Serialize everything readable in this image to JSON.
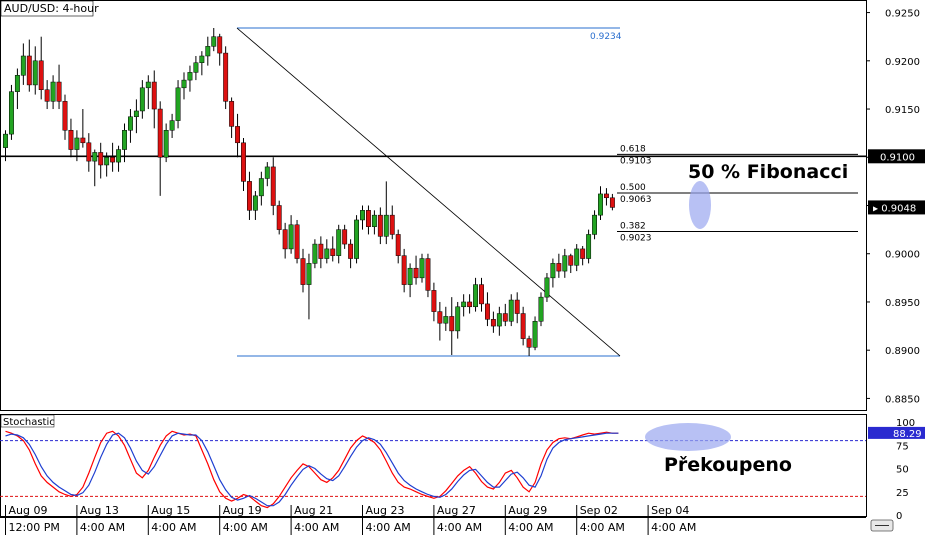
{
  "chart_data": {
    "type": "candlestick",
    "title": "AUD/USD: 4-hour",
    "current_price": "0.9048",
    "price_axis": {
      "ticks": [
        "0.9250",
        "0.9200",
        "0.9150",
        "0.9100",
        "0.9050",
        "0.9000",
        "0.8950",
        "0.8900",
        "0.8850"
      ],
      "range": [
        0.8838,
        0.9262
      ],
      "grid": false
    },
    "horizontal_line": {
      "value": 0.9101,
      "label": "0.9100"
    },
    "swing": {
      "high": {
        "value": 0.9234,
        "label": "0.9234"
      },
      "low": {
        "value": 0.8894
      }
    },
    "fibonacci": [
      {
        "ratio": "0.618",
        "price": "0.9103",
        "value": 0.9103
      },
      {
        "ratio": "0.500",
        "price": "0.9063",
        "value": 0.9063
      },
      {
        "ratio": "0.382",
        "price": "0.9023",
        "value": 0.9023
      }
    ],
    "annotations": {
      "fib_note": "50 % Fibonacci",
      "stoch_note": "Překoupeno"
    },
    "candles": [
      {
        "o": 0.911,
        "h": 0.9128,
        "l": 0.9096,
        "c": 0.9124
      },
      {
        "o": 0.9124,
        "h": 0.9175,
        "l": 0.9118,
        "c": 0.9168
      },
      {
        "o": 0.9168,
        "h": 0.9192,
        "l": 0.915,
        "c": 0.9185
      },
      {
        "o": 0.9185,
        "h": 0.9218,
        "l": 0.9175,
        "c": 0.9205
      },
      {
        "o": 0.9205,
        "h": 0.9222,
        "l": 0.9168,
        "c": 0.9175
      },
      {
        "o": 0.9175,
        "h": 0.9215,
        "l": 0.9165,
        "c": 0.92
      },
      {
        "o": 0.92,
        "h": 0.9225,
        "l": 0.916,
        "c": 0.917
      },
      {
        "o": 0.917,
        "h": 0.918,
        "l": 0.915,
        "c": 0.9158
      },
      {
        "o": 0.9158,
        "h": 0.9185,
        "l": 0.915,
        "c": 0.9178
      },
      {
        "o": 0.9178,
        "h": 0.9196,
        "l": 0.915,
        "c": 0.9158
      },
      {
        "o": 0.9158,
        "h": 0.9165,
        "l": 0.9118,
        "c": 0.9128
      },
      {
        "o": 0.9128,
        "h": 0.914,
        "l": 0.91,
        "c": 0.9108
      },
      {
        "o": 0.9108,
        "h": 0.9128,
        "l": 0.9096,
        "c": 0.912
      },
      {
        "o": 0.912,
        "h": 0.915,
        "l": 0.911,
        "c": 0.9115
      },
      {
        "o": 0.9115,
        "h": 0.9125,
        "l": 0.9085,
        "c": 0.9096
      },
      {
        "o": 0.9096,
        "h": 0.9108,
        "l": 0.907,
        "c": 0.9105
      },
      {
        "o": 0.9105,
        "h": 0.9115,
        "l": 0.9078,
        "c": 0.9092
      },
      {
        "o": 0.9092,
        "h": 0.9105,
        "l": 0.908,
        "c": 0.91
      },
      {
        "o": 0.91,
        "h": 0.9115,
        "l": 0.9085,
        "c": 0.9095
      },
      {
        "o": 0.9095,
        "h": 0.9112,
        "l": 0.9085,
        "c": 0.9108
      },
      {
        "o": 0.9108,
        "h": 0.9135,
        "l": 0.9095,
        "c": 0.9128
      },
      {
        "o": 0.9128,
        "h": 0.915,
        "l": 0.9115,
        "c": 0.9142
      },
      {
        "o": 0.9142,
        "h": 0.916,
        "l": 0.9125,
        "c": 0.9148
      },
      {
        "o": 0.9148,
        "h": 0.918,
        "l": 0.914,
        "c": 0.9172
      },
      {
        "o": 0.9172,
        "h": 0.9185,
        "l": 0.915,
        "c": 0.9178
      },
      {
        "o": 0.9178,
        "h": 0.919,
        "l": 0.913,
        "c": 0.915
      },
      {
        "o": 0.915,
        "h": 0.9158,
        "l": 0.906,
        "c": 0.91
      },
      {
        "o": 0.91,
        "h": 0.9135,
        "l": 0.9095,
        "c": 0.9128
      },
      {
        "o": 0.9128,
        "h": 0.9145,
        "l": 0.912,
        "c": 0.9138
      },
      {
        "o": 0.9138,
        "h": 0.918,
        "l": 0.913,
        "c": 0.9172
      },
      {
        "o": 0.9172,
        "h": 0.9188,
        "l": 0.916,
        "c": 0.918
      },
      {
        "o": 0.918,
        "h": 0.9195,
        "l": 0.9168,
        "c": 0.9188
      },
      {
        "o": 0.9188,
        "h": 0.9205,
        "l": 0.918,
        "c": 0.9198
      },
      {
        "o": 0.9198,
        "h": 0.921,
        "l": 0.9185,
        "c": 0.9205
      },
      {
        "o": 0.9205,
        "h": 0.9225,
        "l": 0.9195,
        "c": 0.9215
      },
      {
        "o": 0.9215,
        "h": 0.9234,
        "l": 0.921,
        "c": 0.9225
      },
      {
        "o": 0.9225,
        "h": 0.9228,
        "l": 0.9195,
        "c": 0.9208
      },
      {
        "o": 0.9208,
        "h": 0.9215,
        "l": 0.915,
        "c": 0.9158
      },
      {
        "o": 0.9158,
        "h": 0.9162,
        "l": 0.912,
        "c": 0.9132
      },
      {
        "o": 0.9132,
        "h": 0.9145,
        "l": 0.91,
        "c": 0.9115
      },
      {
        "o": 0.9115,
        "h": 0.912,
        "l": 0.9065,
        "c": 0.9075
      },
      {
        "o": 0.9075,
        "h": 0.9085,
        "l": 0.9035,
        "c": 0.9045
      },
      {
        "o": 0.9045,
        "h": 0.9065,
        "l": 0.9035,
        "c": 0.906
      },
      {
        "o": 0.906,
        "h": 0.9085,
        "l": 0.905,
        "c": 0.9078
      },
      {
        "o": 0.9078,
        "h": 0.9095,
        "l": 0.907,
        "c": 0.909
      },
      {
        "o": 0.909,
        "h": 0.91,
        "l": 0.904,
        "c": 0.905
      },
      {
        "o": 0.905,
        "h": 0.9055,
        "l": 0.902,
        "c": 0.9025
      },
      {
        "o": 0.9025,
        "h": 0.9032,
        "l": 0.8995,
        "c": 0.9005
      },
      {
        "o": 0.9005,
        "h": 0.904,
        "l": 0.9,
        "c": 0.903
      },
      {
        "o": 0.903,
        "h": 0.9035,
        "l": 0.899,
        "c": 0.8995
      },
      {
        "o": 0.8995,
        "h": 0.9005,
        "l": 0.896,
        "c": 0.8968
      },
      {
        "o": 0.8968,
        "h": 0.9,
        "l": 0.8932,
        "c": 0.899
      },
      {
        "o": 0.899,
        "h": 0.9015,
        "l": 0.8985,
        "c": 0.901
      },
      {
        "o": 0.901,
        "h": 0.9018,
        "l": 0.8985,
        "c": 0.8995
      },
      {
        "o": 0.8995,
        "h": 0.9015,
        "l": 0.899,
        "c": 0.9005
      },
      {
        "o": 0.9005,
        "h": 0.9018,
        "l": 0.8992,
        "c": 0.8998
      },
      {
        "o": 0.8998,
        "h": 0.903,
        "l": 0.899,
        "c": 0.9025
      },
      {
        "o": 0.9025,
        "h": 0.903,
        "l": 0.9005,
        "c": 0.901
      },
      {
        "o": 0.901,
        "h": 0.9015,
        "l": 0.8985,
        "c": 0.8995
      },
      {
        "o": 0.8995,
        "h": 0.904,
        "l": 0.899,
        "c": 0.9035
      },
      {
        "o": 0.9035,
        "h": 0.905,
        "l": 0.9025,
        "c": 0.9045
      },
      {
        "o": 0.9045,
        "h": 0.905,
        "l": 0.902,
        "c": 0.9028
      },
      {
        "o": 0.9028,
        "h": 0.9045,
        "l": 0.902,
        "c": 0.904
      },
      {
        "o": 0.904,
        "h": 0.9048,
        "l": 0.901,
        "c": 0.9018
      },
      {
        "o": 0.9018,
        "h": 0.9075,
        "l": 0.901,
        "c": 0.904
      },
      {
        "o": 0.904,
        "h": 0.905,
        "l": 0.9015,
        "c": 0.902
      },
      {
        "o": 0.902,
        "h": 0.9025,
        "l": 0.899,
        "c": 0.8998
      },
      {
        "o": 0.8998,
        "h": 0.9005,
        "l": 0.896,
        "c": 0.8968
      },
      {
        "o": 0.8968,
        "h": 0.899,
        "l": 0.8955,
        "c": 0.8985
      },
      {
        "o": 0.8985,
        "h": 0.8998,
        "l": 0.8968,
        "c": 0.8975
      },
      {
        "o": 0.8975,
        "h": 0.9,
        "l": 0.897,
        "c": 0.8995
      },
      {
        "o": 0.8995,
        "h": 0.9,
        "l": 0.8955,
        "c": 0.8962
      },
      {
        "o": 0.8962,
        "h": 0.897,
        "l": 0.893,
        "c": 0.894
      },
      {
        "o": 0.894,
        "h": 0.895,
        "l": 0.891,
        "c": 0.8928
      },
      {
        "o": 0.8928,
        "h": 0.8945,
        "l": 0.892,
        "c": 0.8935
      },
      {
        "o": 0.8935,
        "h": 0.8955,
        "l": 0.8895,
        "c": 0.892
      },
      {
        "o": 0.892,
        "h": 0.895,
        "l": 0.8912,
        "c": 0.8945
      },
      {
        "o": 0.8945,
        "h": 0.8958,
        "l": 0.8935,
        "c": 0.895
      },
      {
        "o": 0.895,
        "h": 0.8958,
        "l": 0.8938,
        "c": 0.8945
      },
      {
        "o": 0.8945,
        "h": 0.8975,
        "l": 0.894,
        "c": 0.8968
      },
      {
        "o": 0.8968,
        "h": 0.8975,
        "l": 0.894,
        "c": 0.8948
      },
      {
        "o": 0.8948,
        "h": 0.896,
        "l": 0.8925,
        "c": 0.8932
      },
      {
        "o": 0.8932,
        "h": 0.894,
        "l": 0.8918,
        "c": 0.8925
      },
      {
        "o": 0.8925,
        "h": 0.8945,
        "l": 0.8915,
        "c": 0.8938
      },
      {
        "o": 0.8938,
        "h": 0.8948,
        "l": 0.8925,
        "c": 0.893
      },
      {
        "o": 0.893,
        "h": 0.8958,
        "l": 0.8925,
        "c": 0.8952
      },
      {
        "o": 0.8952,
        "h": 0.896,
        "l": 0.8928,
        "c": 0.8938
      },
      {
        "o": 0.8938,
        "h": 0.8945,
        "l": 0.8905,
        "c": 0.8912
      },
      {
        "o": 0.8912,
        "h": 0.8915,
        "l": 0.8894,
        "c": 0.8903
      },
      {
        "o": 0.8903,
        "h": 0.8935,
        "l": 0.89,
        "c": 0.893
      },
      {
        "o": 0.893,
        "h": 0.896,
        "l": 0.8925,
        "c": 0.8955
      },
      {
        "o": 0.8955,
        "h": 0.898,
        "l": 0.895,
        "c": 0.8975
      },
      {
        "o": 0.8975,
        "h": 0.8995,
        "l": 0.8965,
        "c": 0.899
      },
      {
        "o": 0.899,
        "h": 0.9,
        "l": 0.8975,
        "c": 0.8982
      },
      {
        "o": 0.8982,
        "h": 0.9005,
        "l": 0.8975,
        "c": 0.8998
      },
      {
        "o": 0.8998,
        "h": 0.9,
        "l": 0.898,
        "c": 0.8988
      },
      {
        "o": 0.8988,
        "h": 0.901,
        "l": 0.8982,
        "c": 0.9005
      },
      {
        "o": 0.9005,
        "h": 0.9008,
        "l": 0.8988,
        "c": 0.8995
      },
      {
        "o": 0.8995,
        "h": 0.9025,
        "l": 0.899,
        "c": 0.902
      },
      {
        "o": 0.902,
        "h": 0.9045,
        "l": 0.9015,
        "c": 0.904
      },
      {
        "o": 0.904,
        "h": 0.907,
        "l": 0.9035,
        "c": 0.9062
      },
      {
        "o": 0.9062,
        "h": 0.9068,
        "l": 0.905,
        "c": 0.9058
      },
      {
        "o": 0.9058,
        "h": 0.9062,
        "l": 0.9045,
        "c": 0.9048
      }
    ],
    "stochastic": {
      "label": "Stochastic",
      "value_label": "88.29",
      "levels": [
        80,
        20
      ],
      "ticks": [
        "100",
        "75",
        "50",
        "25",
        "0"
      ],
      "range": [
        0,
        100
      ],
      "k": [
        90,
        88,
        85,
        80,
        70,
        55,
        42,
        35,
        30,
        25,
        22,
        20,
        22,
        30,
        45,
        62,
        78,
        88,
        90,
        85,
        75,
        60,
        45,
        40,
        48,
        62,
        75,
        85,
        90,
        88,
        86,
        87,
        85,
        70,
        55,
        38,
        25,
        18,
        15,
        18,
        22,
        20,
        15,
        10,
        8,
        12,
        20,
        30,
        40,
        48,
        55,
        52,
        45,
        38,
        35,
        40,
        48,
        60,
        72,
        80,
        85,
        82,
        78,
        70,
        58,
        45,
        35,
        30,
        28,
        25,
        22,
        20,
        18,
        20,
        26,
        34,
        42,
        48,
        52,
        45,
        36,
        30,
        28,
        35,
        45,
        48,
        40,
        30,
        25,
        35,
        55,
        70,
        78,
        82,
        83,
        82,
        84,
        86,
        88,
        87,
        88,
        89,
        88,
        88
      ],
      "d": [
        85,
        87,
        86,
        83,
        76,
        65,
        52,
        42,
        35,
        30,
        26,
        22,
        21,
        24,
        32,
        46,
        62,
        76,
        86,
        88,
        83,
        72,
        58,
        48,
        44,
        52,
        64,
        76,
        85,
        88,
        87,
        86,
        86,
        80,
        68,
        53,
        38,
        27,
        19,
        16,
        18,
        21,
        18,
        14,
        10,
        10,
        14,
        22,
        32,
        41,
        49,
        53,
        50,
        44,
        39,
        37,
        42,
        52,
        63,
        73,
        80,
        83,
        81,
        76,
        67,
        56,
        45,
        37,
        32,
        28,
        25,
        22,
        20,
        19,
        22,
        28,
        36,
        43,
        48,
        49,
        42,
        35,
        30,
        30,
        37,
        44,
        46,
        40,
        32,
        30,
        42,
        60,
        72,
        78,
        81,
        82,
        83,
        84,
        85,
        86,
        87,
        88,
        88,
        88
      ]
    },
    "x_axis": {
      "labels": [
        {
          "i": 0,
          "date": "Aug 09",
          "time": "12:00 PM"
        },
        {
          "i": 12,
          "date": "Aug 13",
          "time": "4:00 AM"
        },
        {
          "i": 24,
          "date": "Aug 15",
          "time": "4:00 AM"
        },
        {
          "i": 36,
          "date": "Aug 19",
          "time": "4:00 AM"
        },
        {
          "i": 48,
          "date": "Aug 21",
          "time": "4:00 AM"
        },
        {
          "i": 60,
          "date": "Aug 23",
          "time": "4:00 AM"
        },
        {
          "i": 72,
          "date": "Aug 27",
          "time": "4:00 AM"
        },
        {
          "i": 84,
          "date": "Aug 29",
          "time": "4:00 AM"
        },
        {
          "i": 96,
          "date": "Sep 02",
          "time": "4:00 AM"
        },
        {
          "i": 108,
          "date": "Sep 04",
          "time": "4:00 AM"
        }
      ]
    },
    "colors": {
      "bull": "#22a422",
      "bear": "#dd1111",
      "k_line": "#ff0000",
      "d_line": "#1f3fd1",
      "swing_line": "#2a6fcf",
      "highlight": "#9aa6f0"
    }
  }
}
